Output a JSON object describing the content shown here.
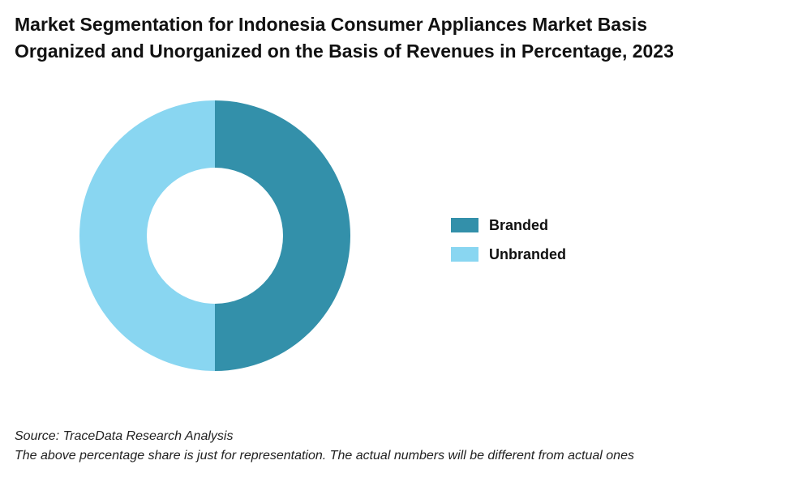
{
  "title": {
    "line1": "Market Segmentation for Indonesia Consumer Appliances Market Basis",
    "line2": "Organized and Unorganized on the Basis of Revenues in Percentage, 2023"
  },
  "chart_data": {
    "type": "pie",
    "donut": true,
    "categories": [
      "Branded",
      "Unbranded"
    ],
    "values": [
      50,
      50
    ],
    "colors": [
      "#3390aa",
      "#89d6f1"
    ],
    "legend_placement": "right"
  },
  "footer": {
    "source": "Source: TraceData Research Analysis",
    "note": "The above percentage share is just for representation. The actual numbers will be different from actual ones"
  }
}
